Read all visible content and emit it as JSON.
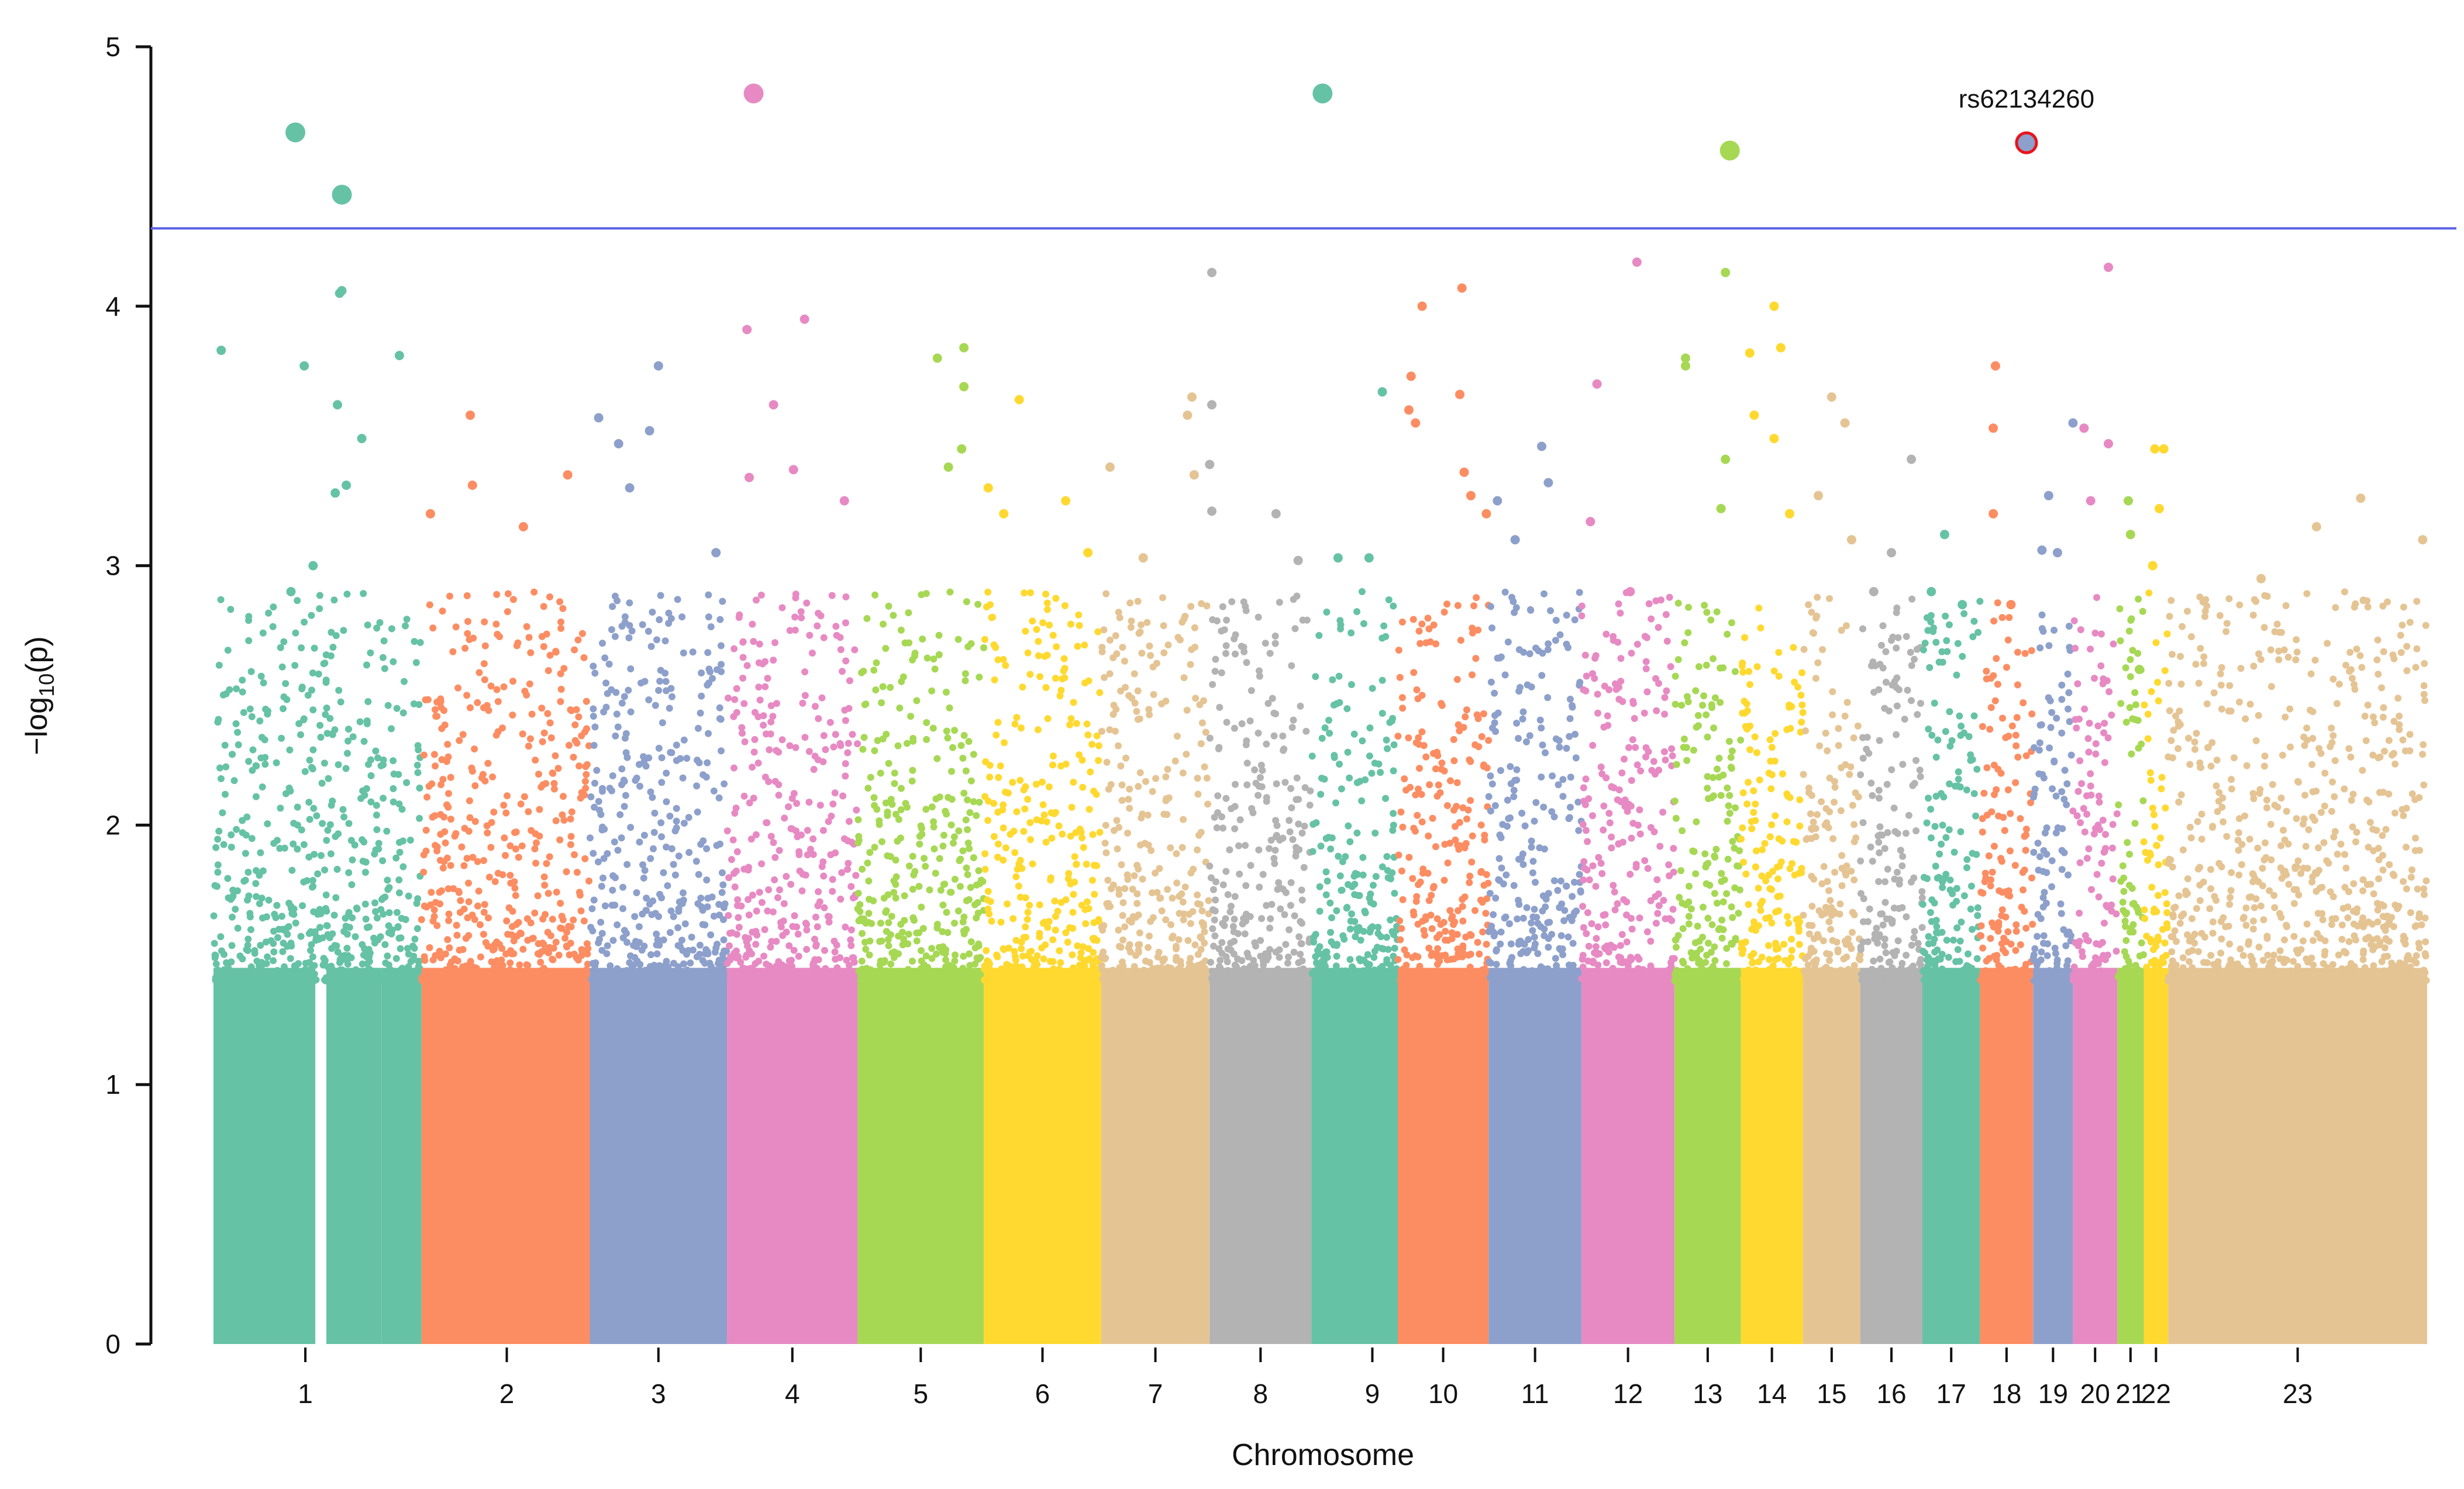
{
  "chart_data": {
    "type": "scatter",
    "subtype": "manhattan",
    "title": "",
    "xlabel": "Chromosome",
    "ylabel_parts": {
      "prefix": "−log",
      "sub": "10",
      "suffix": "(p)"
    },
    "ylim": [
      0,
      5
    ],
    "y_ticks": [
      "0",
      "1",
      "2",
      "3",
      "4",
      "5"
    ],
    "threshold": {
      "value": 4.3,
      "color": "#5b63e6"
    },
    "palette": [
      "#66c2a5",
      "#fc8d62",
      "#8da0cb",
      "#e78ac3",
      "#a6d854",
      "#ffd92f",
      "#e5c494",
      "#b3b3b3"
    ],
    "chromosomes": [
      {
        "label": "1",
        "start": 0.0,
        "end": 0.076,
        "color": "#66c2a5",
        "gaps": [
          [
            0.046,
            0.051
          ]
        ],
        "top_points": [
          [
            0.041,
            3.77
          ],
          [
            0.0035,
            3.83
          ],
          [
            0.035,
            2.9
          ],
          [
            0.045,
            3.0
          ]
        ]
      },
      {
        "label": "",
        "start": 0.076,
        "end": 0.094,
        "color": "#66c2a5",
        "top_points": [
          [
            0.058,
            4.06
          ],
          [
            0.057,
            4.05
          ],
          [
            0.056,
            3.62
          ],
          [
            0.067,
            3.49
          ],
          [
            0.06,
            3.31
          ],
          [
            0.055,
            3.28
          ],
          [
            0.084,
            3.81
          ]
        ]
      },
      {
        "label": "2",
        "start": 0.094,
        "end": 0.17,
        "color": "#fc8d62",
        "top_points": [
          [
            0.116,
            3.58
          ],
          [
            0.117,
            3.31
          ],
          [
            0.098,
            3.2
          ],
          [
            0.16,
            3.35
          ],
          [
            0.14,
            3.15
          ]
        ]
      },
      {
        "label": "3",
        "start": 0.17,
        "end": 0.232,
        "color": "#8da0cb",
        "top_points": [
          [
            0.201,
            3.77
          ],
          [
            0.197,
            3.52
          ],
          [
            0.183,
            3.47
          ],
          [
            0.174,
            3.57
          ],
          [
            0.188,
            3.3
          ],
          [
            0.227,
            3.05
          ]
        ]
      },
      {
        "label": "4",
        "start": 0.232,
        "end": 0.291,
        "color": "#e78ac3",
        "top_points": [
          [
            0.241,
            3.91
          ],
          [
            0.267,
            3.95
          ],
          [
            0.253,
            3.62
          ],
          [
            0.262,
            3.37
          ],
          [
            0.242,
            3.34
          ],
          [
            0.285,
            3.25
          ]
        ]
      },
      {
        "label": "5",
        "start": 0.291,
        "end": 0.348,
        "color": "#a6d854",
        "top_points": [
          [
            0.327,
            3.8
          ],
          [
            0.339,
            3.84
          ],
          [
            0.339,
            3.69
          ],
          [
            0.338,
            3.45
          ],
          [
            0.332,
            3.38
          ]
        ]
      },
      {
        "label": "6",
        "start": 0.348,
        "end": 0.401,
        "color": "#ffd92f",
        "top_points": [
          [
            0.364,
            3.64
          ],
          [
            0.35,
            3.3
          ],
          [
            0.357,
            3.2
          ],
          [
            0.385,
            3.25
          ],
          [
            0.395,
            3.05
          ]
        ]
      },
      {
        "label": "7",
        "start": 0.401,
        "end": 0.45,
        "color": "#e5c494",
        "top_points": [
          [
            0.442,
            3.65
          ],
          [
            0.44,
            3.58
          ],
          [
            0.443,
            3.35
          ],
          [
            0.405,
            3.38
          ],
          [
            0.42,
            3.03
          ]
        ]
      },
      {
        "label": "8",
        "start": 0.45,
        "end": 0.496,
        "color": "#b3b3b3",
        "top_points": [
          [
            0.451,
            4.13
          ],
          [
            0.451,
            3.62
          ],
          [
            0.45,
            3.39
          ],
          [
            0.451,
            3.21
          ],
          [
            0.48,
            3.2
          ],
          [
            0.49,
            3.02
          ]
        ]
      },
      {
        "label": "",
        "start": 0.496,
        "end": 0.512,
        "color": "#66c2a5",
        "top_points": [
          [
            0.508,
            3.03
          ]
        ]
      },
      {
        "label": "9",
        "start": 0.512,
        "end": 0.535,
        "color": "#66c2a5",
        "top_points": [
          [
            0.528,
            3.67
          ],
          [
            0.522,
            3.03
          ]
        ]
      },
      {
        "label": "10",
        "start": 0.535,
        "end": 0.576,
        "color": "#fc8d62",
        "top_points": [
          [
            0.546,
            4.0
          ],
          [
            0.564,
            4.07
          ],
          [
            0.541,
            3.73
          ],
          [
            0.563,
            3.66
          ],
          [
            0.54,
            3.6
          ],
          [
            0.543,
            3.55
          ],
          [
            0.565,
            3.36
          ],
          [
            0.568,
            3.27
          ],
          [
            0.575,
            3.2
          ]
        ]
      },
      {
        "label": "11",
        "start": 0.576,
        "end": 0.618,
        "color": "#8da0cb",
        "top_points": [
          [
            0.6,
            3.46
          ],
          [
            0.603,
            3.32
          ],
          [
            0.58,
            3.25
          ],
          [
            0.588,
            3.1
          ]
        ]
      },
      {
        "label": "12",
        "start": 0.618,
        "end": 0.66,
        "color": "#e78ac3",
        "top_points": [
          [
            0.643,
            4.17
          ],
          [
            0.625,
            3.7
          ],
          [
            0.622,
            3.17
          ],
          [
            0.64,
            2.9
          ]
        ]
      },
      {
        "label": "13",
        "start": 0.66,
        "end": 0.69,
        "color": "#a6d854",
        "top_points": [
          [
            0.665,
            3.8
          ],
          [
            0.665,
            3.77
          ],
          [
            0.683,
            4.13
          ],
          [
            0.683,
            3.41
          ],
          [
            0.681,
            3.22
          ]
        ]
      },
      {
        "label": "14",
        "start": 0.69,
        "end": 0.718,
        "color": "#ffd92f",
        "top_points": [
          [
            0.705,
            4.0
          ],
          [
            0.708,
            3.84
          ],
          [
            0.694,
            3.82
          ],
          [
            0.696,
            3.58
          ],
          [
            0.705,
            3.49
          ],
          [
            0.712,
            3.2
          ]
        ]
      },
      {
        "label": "15",
        "start": 0.718,
        "end": 0.744,
        "color": "#e5c494",
        "top_points": [
          [
            0.731,
            3.65
          ],
          [
            0.737,
            3.55
          ],
          [
            0.725,
            3.27
          ],
          [
            0.74,
            3.1
          ]
        ]
      },
      {
        "label": "16",
        "start": 0.744,
        "end": 0.772,
        "color": "#b3b3b3",
        "top_points": [
          [
            0.767,
            3.41
          ],
          [
            0.758,
            3.05
          ],
          [
            0.75,
            2.9
          ]
        ]
      },
      {
        "label": "17",
        "start": 0.772,
        "end": 0.798,
        "color": "#66c2a5",
        "top_points": [
          [
            0.782,
            3.12
          ],
          [
            0.776,
            2.9
          ],
          [
            0.79,
            2.85
          ]
        ]
      },
      {
        "label": "18",
        "start": 0.798,
        "end": 0.822,
        "color": "#fc8d62",
        "top_points": [
          [
            0.805,
            3.77
          ],
          [
            0.804,
            3.53
          ],
          [
            0.804,
            3.2
          ],
          [
            0.812,
            2.85
          ]
        ]
      },
      {
        "label": "19",
        "start": 0.822,
        "end": 0.84,
        "color": "#8da0cb",
        "top_points": [
          [
            0.84,
            3.55
          ],
          [
            0.829,
            3.27
          ],
          [
            0.826,
            3.06
          ],
          [
            0.833,
            3.05
          ]
        ]
      },
      {
        "label": "20",
        "start": 0.84,
        "end": 0.86,
        "color": "#e78ac3",
        "top_points": [
          [
            0.856,
            4.15
          ],
          [
            0.845,
            3.53
          ],
          [
            0.856,
            3.47
          ],
          [
            0.848,
            3.25
          ]
        ]
      },
      {
        "label": "21",
        "start": 0.86,
        "end": 0.872,
        "color": "#a6d854",
        "top_points": [
          [
            0.865,
            3.25
          ],
          [
            0.866,
            3.12
          ],
          [
            0.87,
            2.6
          ]
        ]
      },
      {
        "label": "22",
        "start": 0.872,
        "end": 0.883,
        "color": "#ffd92f",
        "top_points": [
          [
            0.877,
            3.45
          ],
          [
            0.881,
            3.45
          ],
          [
            0.879,
            3.22
          ],
          [
            0.876,
            3.0
          ]
        ]
      },
      {
        "label": "23",
        "start": 0.883,
        "end": 1.0,
        "color": "#e5c494",
        "top_points": [
          [
            0.97,
            3.26
          ],
          [
            0.998,
            3.1
          ],
          [
            0.95,
            3.15
          ],
          [
            0.925,
            2.95
          ]
        ]
      }
    ],
    "tick_positions": [
      0.0415,
      0.1325,
      0.201,
      0.2615,
      0.3195,
      0.3745,
      0.4255,
      0.473,
      0.5235,
      0.5555,
      0.597,
      0.639,
      0.675,
      0.704,
      0.731,
      0.758,
      0.785,
      0.81,
      0.831,
      0.85,
      0.866,
      0.8775,
      0.9415
    ],
    "hits": [
      {
        "x": 0.037,
        "y": 4.67,
        "color": "#66c2a5"
      },
      {
        "x": 0.058,
        "y": 4.43,
        "color": "#66c2a5"
      },
      {
        "x": 0.244,
        "y": 4.82,
        "color": "#e78ac3"
      },
      {
        "x": 0.501,
        "y": 4.82,
        "color": "#66c2a5"
      },
      {
        "x": 0.685,
        "y": 4.6,
        "color": "#a6d854"
      },
      {
        "x": 0.819,
        "y": 4.63,
        "color": "#8da0cb",
        "highlight": true,
        "label": "rs62134260"
      }
    ]
  }
}
